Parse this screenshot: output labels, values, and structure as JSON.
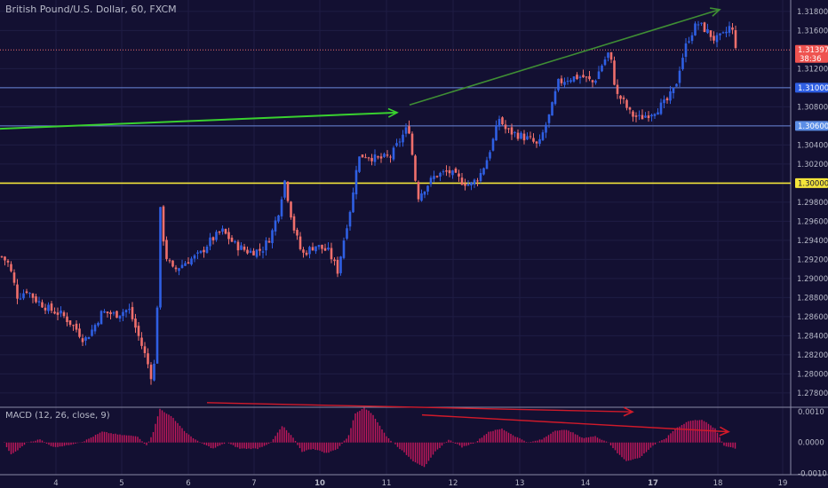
{
  "chart_title": "British Pound/U.S. Dollar, 60, FXCM",
  "colors": {
    "background": "#131032",
    "up": "#2f5fe3",
    "down": "#ef6f6c",
    "grid": "#1f1d44",
    "axis_text": "#b7b9c8",
    "yellow": "#f3e43a",
    "blue_line": "#6b86d9",
    "green_bright": "#39d12f",
    "green_dark": "#3f8e34",
    "red_arrow": "#d11a2a",
    "macd_bar": "#c2185b"
  },
  "price_tags": [
    {
      "value": "1.31397",
      "bg": "#ef5350",
      "fg": "#ffffff",
      "extra": "38:36"
    },
    {
      "value": "1.31000",
      "bg": "#2f5fe3",
      "fg": "#ffffff"
    },
    {
      "value": "1.30600",
      "bg": "#5b8ee6",
      "fg": "#ffffff"
    },
    {
      "value": "1.30000",
      "bg": "#f3e43a",
      "fg": "#131032"
    }
  ],
  "chart_data": [
    {
      "type": "candlestick",
      "title": "British Pound/U.S. Dollar, 60, FXCM",
      "xlabel": "",
      "ylabel": "",
      "x_ticks": [
        "4",
        "5",
        "6",
        "7",
        "10",
        "11",
        "12",
        "13",
        "14",
        "17",
        "18",
        "19"
      ],
      "ylim": [
        1.2765,
        1.3192
      ],
      "y_ticks": [
        "1.31800",
        "1.31600",
        "1.31200",
        "1.31000",
        "1.30800",
        "1.30600",
        "1.30400",
        "1.30200",
        "1.30000",
        "1.29800",
        "1.29600",
        "1.29400",
        "1.29200",
        "1.29000",
        "1.28800",
        "1.28600",
        "1.28400",
        "1.28200",
        "1.28000",
        "1.27800"
      ],
      "last_price": 1.31397,
      "grid": true,
      "horizontal_levels": [
        {
          "price": 1.31,
          "color": "#6b86d9"
        },
        {
          "price": 1.306,
          "color": "#6b86d9"
        },
        {
          "price": 1.3,
          "color": "#f3e43a"
        }
      ],
      "trend_arrows": [
        {
          "from": [
            0.0,
            1.3057
          ],
          "to": [
            447,
            1.3074
          ],
          "color": "#39d12f"
        },
        {
          "from": [
            461,
            1.3082
          ],
          "to": [
            810,
            1.3182
          ],
          "color": "#3f8e34"
        }
      ],
      "close_path": [
        [
          0,
          1.2925
        ],
        [
          10,
          1.2915
        ],
        [
          20,
          1.288
        ],
        [
          30,
          1.2888
        ],
        [
          40,
          1.2878
        ],
        [
          55,
          1.2868
        ],
        [
          70,
          1.2862
        ],
        [
          85,
          1.2848
        ],
        [
          95,
          1.2835
        ],
        [
          105,
          1.2848
        ],
        [
          115,
          1.2865
        ],
        [
          130,
          1.2862
        ],
        [
          145,
          1.2868
        ],
        [
          155,
          1.2842
        ],
        [
          165,
          1.2815
        ],
        [
          172,
          1.2792
        ],
        [
          176,
          1.2838
        ],
        [
          180,
          1.2975
        ],
        [
          186,
          1.2925
        ],
        [
          195,
          1.2908
        ],
        [
          210,
          1.2918
        ],
        [
          225,
          1.2925
        ],
        [
          235,
          1.2938
        ],
        [
          250,
          1.295
        ],
        [
          265,
          1.2935
        ],
        [
          280,
          1.2928
        ],
        [
          295,
          1.293
        ],
        [
          305,
          1.2945
        ],
        [
          315,
          1.2975
        ],
        [
          320,
          1.3005
        ],
        [
          330,
          1.2955
        ],
        [
          340,
          1.2925
        ],
        [
          355,
          1.2935
        ],
        [
          370,
          1.2928
        ],
        [
          380,
          1.2908
        ],
        [
          390,
          1.2955
        ],
        [
          397,
          1.2985
        ],
        [
          402,
          1.3025
        ],
        [
          410,
          1.303
        ],
        [
          425,
          1.3025
        ],
        [
          440,
          1.3028
        ],
        [
          450,
          1.3045
        ],
        [
          460,
          1.306
        ],
        [
          466,
          1.3015
        ],
        [
          470,
          1.2985
        ],
        [
          478,
          1.2995
        ],
        [
          490,
          1.3008
        ],
        [
          505,
          1.3012
        ],
        [
          520,
          1.3002
        ],
        [
          530,
          1.2998
        ],
        [
          540,
          1.3008
        ],
        [
          548,
          1.3025
        ],
        [
          555,
          1.3045
        ],
        [
          562,
          1.3068
        ],
        [
          570,
          1.3055
        ],
        [
          585,
          1.305
        ],
        [
          598,
          1.3045
        ],
        [
          606,
          1.3038
        ],
        [
          612,
          1.3055
        ],
        [
          620,
          1.3075
        ],
        [
          628,
          1.3105
        ],
        [
          640,
          1.311
        ],
        [
          655,
          1.3112
        ],
        [
          668,
          1.3105
        ],
        [
          678,
          1.3125
        ],
        [
          686,
          1.3138
        ],
        [
          694,
          1.3092
        ],
        [
          700,
          1.3088
        ],
        [
          710,
          1.3072
        ],
        [
          720,
          1.3068
        ],
        [
          735,
          1.3075
        ],
        [
          750,
          1.3085
        ],
        [
          760,
          1.31
        ],
        [
          766,
          1.3125
        ],
        [
          774,
          1.315
        ],
        [
          785,
          1.3168
        ],
        [
          795,
          1.316
        ],
        [
          805,
          1.315
        ],
        [
          815,
          1.3155
        ],
        [
          822,
          1.3165
        ],
        [
          826,
          1.3155
        ],
        [
          829,
          1.314
        ]
      ]
    },
    {
      "type": "histogram",
      "title": "MACD (12, 26, close, 9)",
      "xlabel": "",
      "ylabel": "",
      "ylim": [
        -0.00105,
        0.00115
      ],
      "y_ticks": [
        "0.0010",
        "0.0000",
        "-0.0010"
      ],
      "grid": true,
      "trend_arrows": [
        {
          "from": [
            233,
            0.0013
          ],
          "to": [
            712,
            0.001
          ],
          "color": "#d11a2a"
        },
        {
          "from": [
            475,
            0.0009
          ],
          "to": [
            820,
            0.00035
          ],
          "color": "#d11a2a"
        }
      ],
      "hist_path": [
        [
          5,
          0.0
        ],
        [
          12,
          -0.0004
        ],
        [
          20,
          -0.00025
        ],
        [
          30,
          0.0
        ],
        [
          45,
          0.0001
        ],
        [
          60,
          -0.00015
        ],
        [
          75,
          -0.0001
        ],
        [
          95,
          5e-05
        ],
        [
          115,
          0.00035
        ],
        [
          135,
          0.00025
        ],
        [
          155,
          0.0002
        ],
        [
          165,
          -0.0001
        ],
        [
          172,
          0.0003
        ],
        [
          180,
          0.0011
        ],
        [
          195,
          0.0008
        ],
        [
          210,
          0.0003
        ],
        [
          225,
          0.0
        ],
        [
          240,
          -0.0002
        ],
        [
          255,
          0.0
        ],
        [
          270,
          -0.0002
        ],
        [
          290,
          -0.0002
        ],
        [
          305,
          0.0
        ],
        [
          318,
          0.00055
        ],
        [
          330,
          0.00015
        ],
        [
          340,
          -0.0003
        ],
        [
          352,
          -0.0002
        ],
        [
          368,
          -0.00035
        ],
        [
          380,
          -0.0002
        ],
        [
          392,
          0.0002
        ],
        [
          400,
          0.00095
        ],
        [
          410,
          0.00115
        ],
        [
          420,
          0.0009
        ],
        [
          435,
          0.0002
        ],
        [
          450,
          -0.0002
        ],
        [
          465,
          -0.0006
        ],
        [
          478,
          -0.0008
        ],
        [
          490,
          -0.0003
        ],
        [
          505,
          0.0001
        ],
        [
          520,
          -0.00015
        ],
        [
          535,
          0.0
        ],
        [
          550,
          0.00035
        ],
        [
          565,
          0.00045
        ],
        [
          580,
          0.0002
        ],
        [
          595,
          0.0
        ],
        [
          610,
          0.0001
        ],
        [
          625,
          0.0004
        ],
        [
          640,
          0.0004
        ],
        [
          655,
          0.00015
        ],
        [
          670,
          0.0002
        ],
        [
          685,
          0.0
        ],
        [
          695,
          -0.00035
        ],
        [
          705,
          -0.0006
        ],
        [
          720,
          -0.0005
        ],
        [
          735,
          -0.0001
        ],
        [
          750,
          0.00015
        ],
        [
          760,
          0.00045
        ],
        [
          775,
          0.0007
        ],
        [
          790,
          0.00075
        ],
        [
          805,
          0.00045
        ],
        [
          815,
          -0.0001
        ],
        [
          829,
          -0.0002
        ]
      ]
    }
  ]
}
